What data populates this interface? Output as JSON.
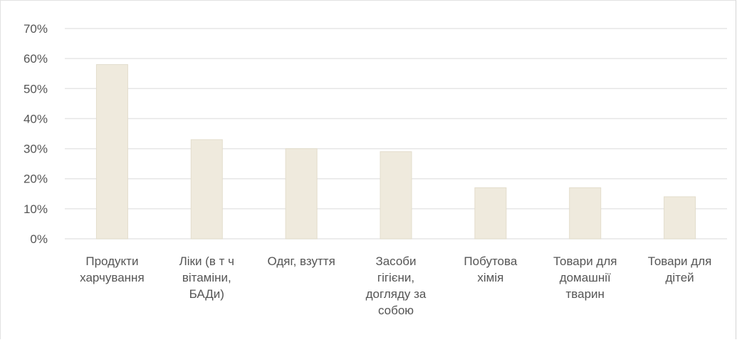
{
  "chart_data": {
    "type": "bar",
    "title": "",
    "xlabel": "",
    "ylabel": "",
    "categories": [
      [
        "Продукти",
        "харчування"
      ],
      [
        "Ліки (в т ч",
        "вітаміни,",
        "БАДи)"
      ],
      [
        "Одяг, взуття"
      ],
      [
        "Засоби",
        "гігієни,",
        "догляду за",
        "собою"
      ],
      [
        "Побутова",
        "хімія"
      ],
      [
        "Товари для",
        "домашнії",
        "тварин"
      ],
      [
        "Товари для",
        "дітей"
      ]
    ],
    "values": [
      58,
      33,
      30,
      29,
      17,
      17,
      14
    ],
    "yticks": [
      "0%",
      "10%",
      "20%",
      "30%",
      "40%",
      "50%",
      "60%",
      "70%"
    ],
    "ylim": [
      0,
      70
    ],
    "grid": true,
    "legend": "none",
    "colors": {
      "bar": "#efeadd",
      "bar_edge": "#e3ddcc",
      "grid": "#e6e6e6",
      "text": "#555555"
    }
  }
}
